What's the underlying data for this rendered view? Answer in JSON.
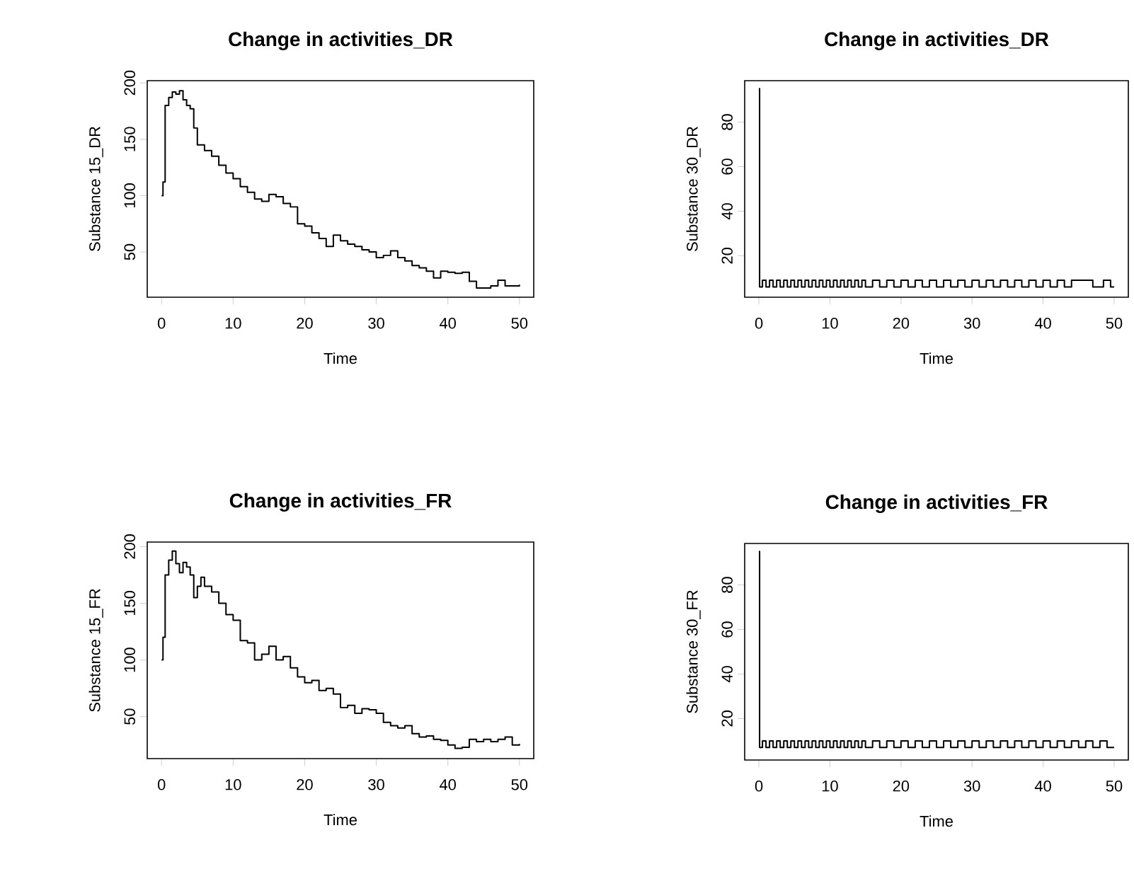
{
  "chart_data": [
    {
      "type": "step",
      "title": "Change in activities_DR",
      "xlabel": "Time",
      "ylabel": "Substance 15_DR",
      "color": "#000000",
      "xlim": [
        -2,
        52
      ],
      "ylim": [
        9.9,
        202
      ],
      "xticks": [
        0,
        10,
        20,
        30,
        40,
        50
      ],
      "yticks": [
        50,
        100,
        150,
        200
      ],
      "x": [
        0,
        0.2,
        0.5,
        1,
        1.5,
        2,
        2.5,
        3,
        3.5,
        4,
        4.5,
        5,
        6,
        7,
        8,
        9,
        10,
        11,
        12,
        13,
        14,
        15,
        16,
        17,
        18,
        19,
        20,
        21,
        22,
        23,
        24,
        25,
        26,
        27,
        28,
        29,
        30,
        31,
        32,
        33,
        34,
        35,
        36,
        37,
        38,
        39,
        40,
        41,
        42,
        43,
        44,
        45,
        46,
        47,
        48,
        49,
        50
      ],
      "values": [
        100,
        112,
        180,
        187,
        192,
        190,
        193,
        185,
        180,
        177,
        160,
        145,
        140,
        135,
        127,
        120,
        115,
        108,
        103,
        97,
        95,
        101,
        99,
        93,
        90,
        75,
        73,
        67,
        62,
        55,
        65,
        60,
        57,
        55,
        52,
        50,
        45,
        47,
        51,
        45,
        42,
        38,
        36,
        33,
        27,
        33,
        32,
        31,
        32,
        24,
        18,
        18,
        20,
        25,
        20,
        20,
        21
      ]
    },
    {
      "type": "step",
      "title": "Change in activities_DR",
      "xlabel": "Time",
      "ylabel": "Substance 30_DR",
      "color": "#000000",
      "xlim": [
        -2,
        52
      ],
      "ylim": [
        1.4,
        98.6
      ],
      "xticks": [
        0,
        10,
        20,
        30,
        40,
        50
      ],
      "yticks": [
        20,
        40,
        60,
        80
      ],
      "x": [
        0,
        0.1,
        0.5,
        1,
        1.5,
        2,
        2.5,
        3,
        3.5,
        4,
        4.5,
        5,
        5.5,
        6,
        6.5,
        7,
        7.5,
        8,
        8.5,
        9,
        9.5,
        10,
        10.5,
        11,
        11.5,
        12,
        12.5,
        13,
        13.5,
        14,
        14.5,
        15,
        16,
        17,
        18,
        19,
        20,
        21,
        22,
        23,
        24,
        25,
        26,
        27,
        28,
        29,
        30,
        31,
        32,
        33,
        34,
        35,
        36,
        37,
        38,
        39,
        40,
        41,
        42,
        43,
        44,
        47,
        48.5,
        49.5,
        50
      ],
      "values": [
        95,
        6,
        9,
        6,
        9,
        6,
        9,
        6,
        9,
        6,
        9,
        6,
        9,
        6,
        9,
        6,
        9,
        6,
        9,
        6,
        9,
        6,
        9,
        6,
        9,
        6,
        9,
        6,
        9,
        6,
        9,
        6,
        9,
        6,
        9,
        6,
        9,
        6,
        9,
        6,
        9,
        6,
        9,
        6,
        9,
        6,
        9,
        6,
        9,
        6,
        9,
        6,
        9,
        6,
        9,
        6,
        9,
        6,
        9,
        6,
        9,
        6,
        9,
        6,
        6
      ]
    },
    {
      "type": "step",
      "title": "Change in activities_FR",
      "xlabel": "Time",
      "ylabel": "Substance 15_FR",
      "color": "#000000",
      "xlim": [
        -2,
        52
      ],
      "ylim": [
        13,
        204
      ],
      "xticks": [
        0,
        10,
        20,
        30,
        40,
        50
      ],
      "yticks": [
        50,
        100,
        150,
        200
      ],
      "x": [
        0,
        0.2,
        0.5,
        1,
        1.5,
        2,
        2.5,
        3,
        3.5,
        4,
        4.5,
        5,
        5.5,
        6,
        7,
        8,
        9,
        10,
        11,
        12,
        13,
        14,
        15,
        16,
        17,
        18,
        19,
        20,
        21,
        22,
        23,
        24,
        25,
        26,
        27,
        28,
        29,
        30,
        31,
        32,
        33,
        34,
        35,
        36,
        37,
        38,
        39,
        40,
        41,
        42,
        43,
        44,
        45,
        46,
        47,
        48,
        49,
        50
      ],
      "values": [
        100,
        120,
        175,
        188,
        196,
        185,
        177,
        186,
        182,
        175,
        155,
        165,
        173,
        165,
        160,
        150,
        140,
        135,
        117,
        115,
        100,
        105,
        112,
        100,
        103,
        93,
        85,
        80,
        82,
        73,
        75,
        70,
        58,
        60,
        53,
        57,
        56,
        53,
        45,
        42,
        40,
        42,
        35,
        32,
        33,
        30,
        29,
        25,
        22,
        23,
        30,
        28,
        30,
        28,
        30,
        32,
        25,
        26
      ]
    },
    {
      "type": "step",
      "title": "Change in activities_FR",
      "xlabel": "Time",
      "ylabel": "Substance 30_FR",
      "color": "#000000",
      "xlim": [
        -2,
        52
      ],
      "ylim": [
        1.4,
        98.6
      ],
      "xticks": [
        0,
        10,
        20,
        30,
        40,
        50
      ],
      "yticks": [
        20,
        40,
        60,
        80
      ],
      "x": [
        0,
        0.1,
        0.5,
        1,
        1.5,
        2,
        2.5,
        3,
        3.5,
        4,
        4.5,
        5,
        5.5,
        6,
        6.5,
        7,
        7.5,
        8,
        8.5,
        9,
        9.5,
        10,
        10.5,
        11,
        11.5,
        12,
        12.5,
        13,
        13.5,
        14,
        14.5,
        15,
        16,
        17,
        18,
        19,
        20,
        21,
        22,
        23,
        24,
        25,
        26,
        27,
        28,
        29,
        30,
        31,
        32,
        33,
        34,
        35,
        36,
        37,
        38,
        39,
        40,
        41,
        42,
        43,
        44,
        45,
        46,
        47,
        48,
        49,
        50
      ],
      "values": [
        95,
        7,
        10,
        7,
        10,
        7,
        10,
        7,
        10,
        7,
        10,
        7,
        10,
        7,
        10,
        7,
        10,
        7,
        10,
        7,
        10,
        7,
        10,
        7,
        10,
        7,
        10,
        7,
        10,
        7,
        10,
        7,
        10,
        7,
        10,
        7,
        10,
        7,
        10,
        7,
        10,
        7,
        10,
        7,
        10,
        7,
        10,
        7,
        10,
        7,
        10,
        7,
        10,
        7,
        10,
        7,
        10,
        7,
        10,
        7,
        10,
        7,
        10,
        7,
        10,
        7,
        7
      ]
    }
  ]
}
